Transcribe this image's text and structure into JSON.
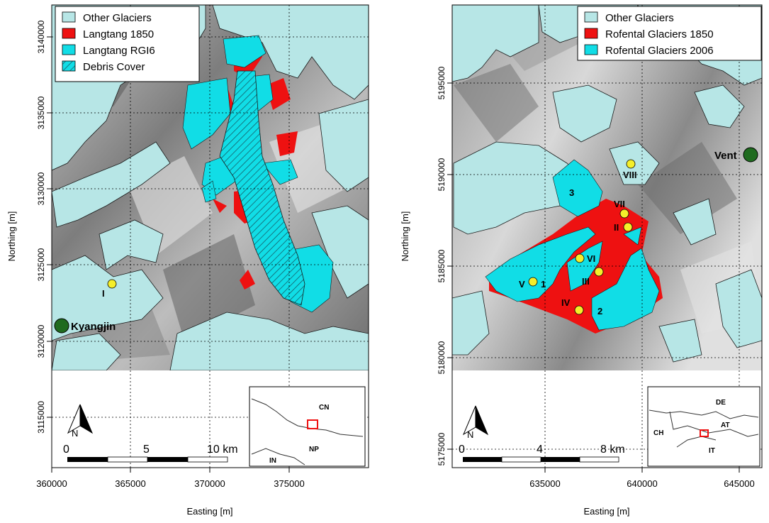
{
  "left_map": {
    "xlabel": "Easting [m]",
    "ylabel": "Northing [m]",
    "x_ticks": [
      "360000",
      "365000",
      "370000",
      "375000"
    ],
    "y_ticks": [
      "3115000",
      "3120000",
      "3125000",
      "3130000",
      "3135000",
      "3140000"
    ],
    "legend": [
      "Other Glaciers",
      "Langtang 1850",
      "Langtang RGI6",
      "Debris Cover"
    ],
    "towns": [
      "Kyangjin"
    ],
    "points": [
      "I"
    ],
    "scalebar": {
      "labels": [
        "0",
        "5",
        "10 km"
      ]
    },
    "north": "N",
    "inset_labels": [
      "CN",
      "NP",
      "IN"
    ]
  },
  "right_map": {
    "xlabel": "Easting [m]",
    "ylabel": "Northing [m]",
    "x_ticks": [
      "635000",
      "640000",
      "645000"
    ],
    "y_ticks": [
      "5175000",
      "5180000",
      "5185000",
      "5190000",
      "5195000"
    ],
    "legend": [
      "Other Glaciers",
      "Rofental Glaciers 1850",
      "Rofental Glaciers 2006"
    ],
    "towns": [
      "Vent"
    ],
    "points": [
      "II",
      "III",
      "IV",
      "V",
      "VI",
      "VII",
      "VIII"
    ],
    "glacier_numbers": [
      "1",
      "2",
      "3"
    ],
    "scalebar": {
      "labels": [
        "0",
        "4",
        "8 km"
      ]
    },
    "north": "N",
    "inset_labels": [
      "DE",
      "AT",
      "CH",
      "IT"
    ]
  },
  "colors": {
    "other_glaciers": "#b7e6e6",
    "glacier_1850": "#ee1111",
    "glacier_recent": "#11dde6",
    "point_marker": "#f5ee2a",
    "town_marker": "#1f6b1f"
  }
}
